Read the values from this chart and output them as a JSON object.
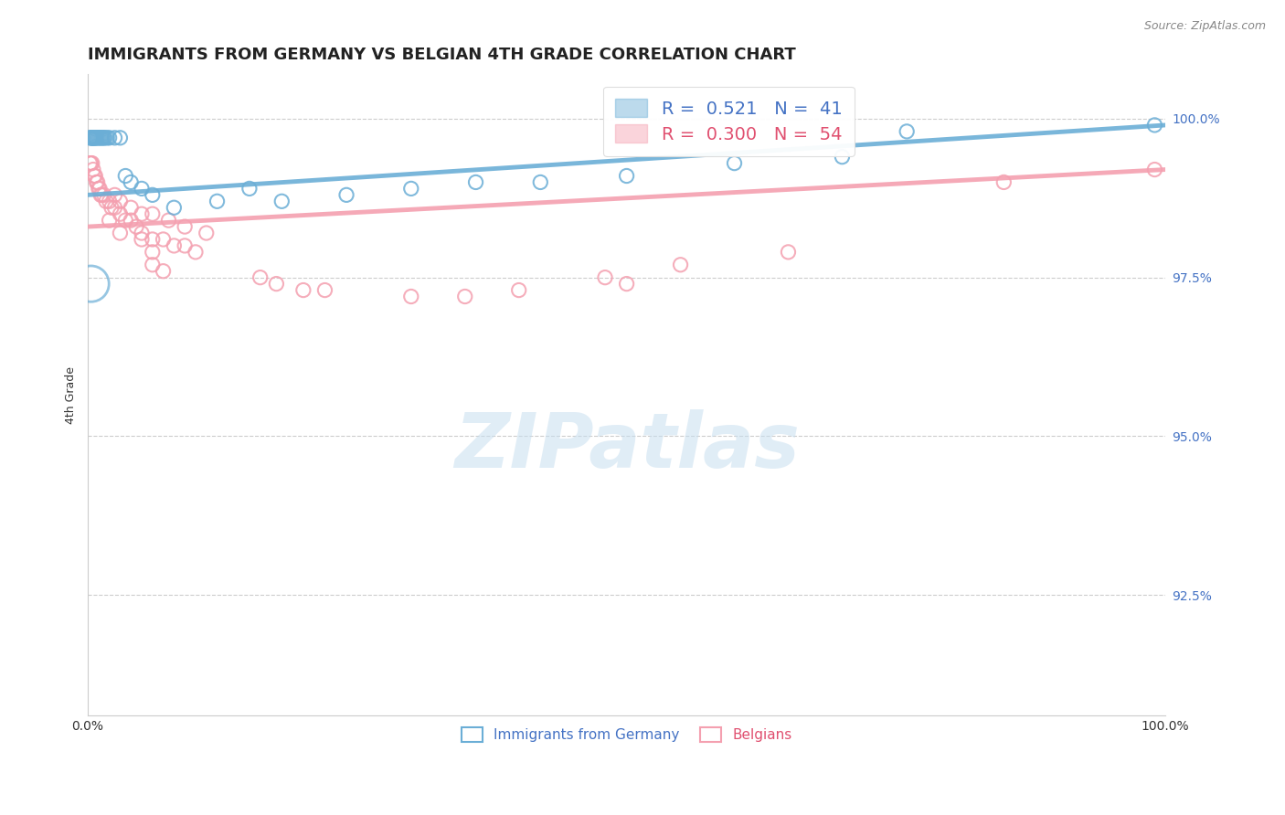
{
  "title": "IMMIGRANTS FROM GERMANY VS BELGIAN 4TH GRADE CORRELATION CHART",
  "source_text": "Source: ZipAtlas.com",
  "ylabel": "4th Grade",
  "xmin": 0.0,
  "xmax": 1.0,
  "ymin": 0.906,
  "ymax": 1.007,
  "yticks": [
    0.925,
    0.95,
    0.975,
    1.0
  ],
  "ytick_labels": [
    "92.5%",
    "95.0%",
    "97.5%",
    "100.0%"
  ],
  "xtick_labels": [
    "0.0%",
    "100.0%"
  ],
  "legend_label_blue": "Immigrants from Germany",
  "legend_label_pink": "Belgians",
  "blue_color": "#6baed6",
  "pink_color": "#f4a0b0",
  "title_fontsize": 13,
  "axis_label_fontsize": 9,
  "tick_fontsize": 10,
  "blue_R": 0.521,
  "blue_N": 41,
  "pink_R": 0.3,
  "pink_N": 54,
  "blue_scatter": [
    [
      0.002,
      0.997
    ],
    [
      0.003,
      0.997
    ],
    [
      0.003,
      0.997
    ],
    [
      0.004,
      0.997
    ],
    [
      0.004,
      0.997
    ],
    [
      0.005,
      0.997
    ],
    [
      0.005,
      0.997
    ],
    [
      0.006,
      0.997
    ],
    [
      0.006,
      0.997
    ],
    [
      0.007,
      0.997
    ],
    [
      0.007,
      0.997
    ],
    [
      0.008,
      0.997
    ],
    [
      0.009,
      0.997
    ],
    [
      0.01,
      0.997
    ],
    [
      0.011,
      0.997
    ],
    [
      0.012,
      0.997
    ],
    [
      0.013,
      0.997
    ],
    [
      0.014,
      0.997
    ],
    [
      0.015,
      0.997
    ],
    [
      0.016,
      0.997
    ],
    [
      0.018,
      0.997
    ],
    [
      0.02,
      0.997
    ],
    [
      0.025,
      0.997
    ],
    [
      0.03,
      0.997
    ],
    [
      0.035,
      0.991
    ],
    [
      0.04,
      0.99
    ],
    [
      0.05,
      0.989
    ],
    [
      0.06,
      0.988
    ],
    [
      0.08,
      0.986
    ],
    [
      0.12,
      0.987
    ],
    [
      0.15,
      0.989
    ],
    [
      0.18,
      0.987
    ],
    [
      0.24,
      0.988
    ],
    [
      0.3,
      0.989
    ],
    [
      0.36,
      0.99
    ],
    [
      0.42,
      0.99
    ],
    [
      0.5,
      0.991
    ],
    [
      0.6,
      0.993
    ],
    [
      0.7,
      0.994
    ],
    [
      0.76,
      0.998
    ],
    [
      0.99,
      0.999
    ]
  ],
  "pink_scatter": [
    [
      0.002,
      0.993
    ],
    [
      0.003,
      0.993
    ],
    [
      0.004,
      0.993
    ],
    [
      0.005,
      0.992
    ],
    [
      0.006,
      0.991
    ],
    [
      0.007,
      0.991
    ],
    [
      0.008,
      0.99
    ],
    [
      0.009,
      0.99
    ],
    [
      0.01,
      0.989
    ],
    [
      0.011,
      0.989
    ],
    [
      0.012,
      0.988
    ],
    [
      0.013,
      0.988
    ],
    [
      0.015,
      0.988
    ],
    [
      0.017,
      0.987
    ],
    [
      0.02,
      0.987
    ],
    [
      0.022,
      0.986
    ],
    [
      0.025,
      0.986
    ],
    [
      0.03,
      0.985
    ],
    [
      0.035,
      0.984
    ],
    [
      0.04,
      0.984
    ],
    [
      0.045,
      0.983
    ],
    [
      0.05,
      0.982
    ],
    [
      0.06,
      0.981
    ],
    [
      0.07,
      0.981
    ],
    [
      0.08,
      0.98
    ],
    [
      0.09,
      0.98
    ],
    [
      0.1,
      0.979
    ],
    [
      0.025,
      0.988
    ],
    [
      0.03,
      0.987
    ],
    [
      0.04,
      0.986
    ],
    [
      0.05,
      0.985
    ],
    [
      0.06,
      0.985
    ],
    [
      0.075,
      0.984
    ],
    [
      0.09,
      0.983
    ],
    [
      0.11,
      0.982
    ],
    [
      0.02,
      0.984
    ],
    [
      0.03,
      0.982
    ],
    [
      0.05,
      0.981
    ],
    [
      0.06,
      0.979
    ],
    [
      0.06,
      0.977
    ],
    [
      0.07,
      0.976
    ],
    [
      0.16,
      0.975
    ],
    [
      0.175,
      0.974
    ],
    [
      0.2,
      0.973
    ],
    [
      0.22,
      0.973
    ],
    [
      0.3,
      0.972
    ],
    [
      0.35,
      0.972
    ],
    [
      0.4,
      0.973
    ],
    [
      0.48,
      0.975
    ],
    [
      0.5,
      0.974
    ],
    [
      0.55,
      0.977
    ],
    [
      0.65,
      0.979
    ],
    [
      0.85,
      0.99
    ],
    [
      0.99,
      0.992
    ]
  ],
  "blue_line": [
    [
      0.0,
      0.988
    ],
    [
      1.0,
      0.999
    ]
  ],
  "pink_line": [
    [
      0.0,
      0.983
    ],
    [
      1.0,
      0.992
    ]
  ],
  "watermark_text": "ZIPatlas",
  "watermark_color": "#c8dff0"
}
